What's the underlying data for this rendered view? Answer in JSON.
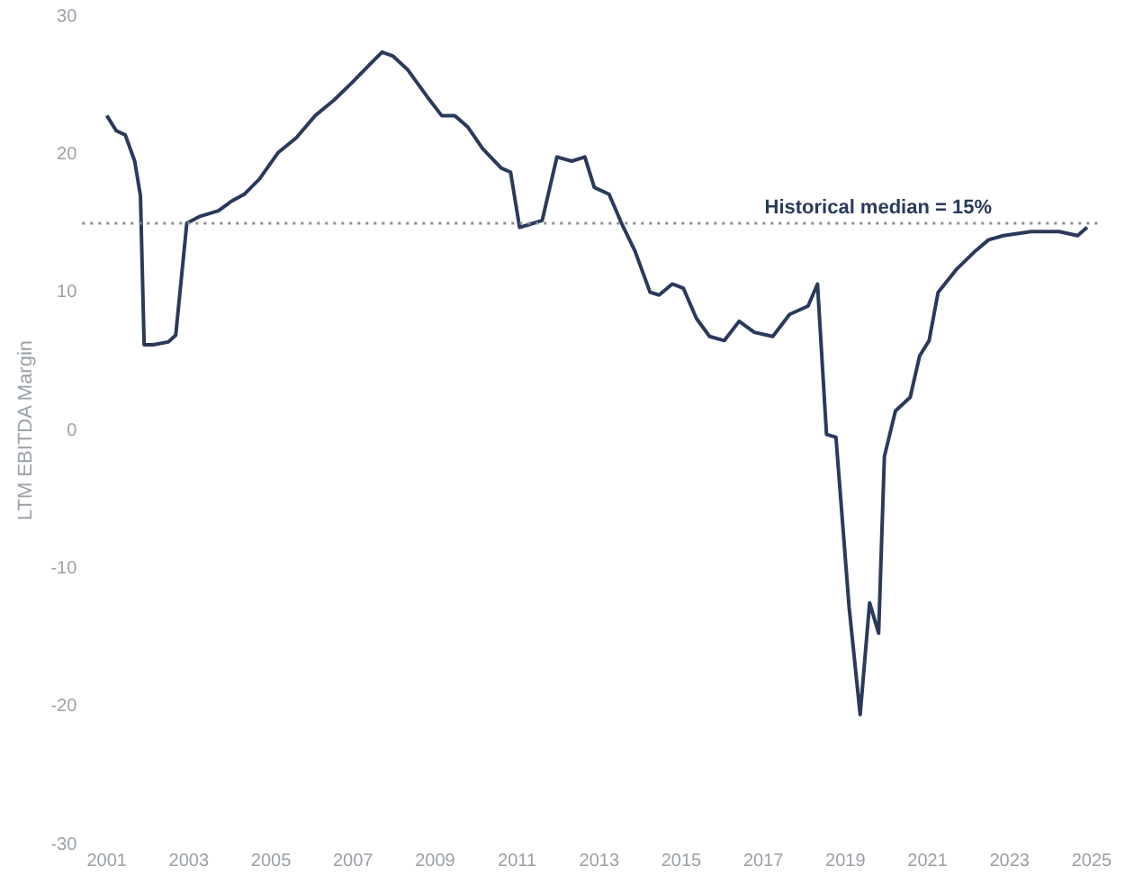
{
  "chart_data": {
    "type": "line",
    "ylabel": "LTM EBITDA Margin",
    "xlim": [
      2000.4,
      2025.2
    ],
    "xticks": [
      2001,
      2003,
      2005,
      2007,
      2009,
      2011,
      2013,
      2015,
      2017,
      2019,
      2021,
      2023,
      2025
    ],
    "ylim": [
      -30,
      30
    ],
    "yticks": [
      -30,
      -20,
      -10,
      0,
      10,
      20,
      30
    ],
    "grid": false,
    "legend": false,
    "marker": "none",
    "line_style": "solid",
    "ref_lines": [
      {
        "axis": "y",
        "value": 15,
        "label": "Historical median = 15%",
        "color": "#8a8f99",
        "line_style": "dotted"
      }
    ],
    "series": [
      {
        "color": "#2b3a5c",
        "x": [
          2001.0,
          2001.23,
          2001.45,
          2001.68,
          2001.82,
          2001.91,
          2002.13,
          2002.5,
          2002.68,
          2002.95,
          2003.27,
          2003.72,
          2004.04,
          2004.35,
          2004.72,
          2005.17,
          2005.62,
          2006.08,
          2006.53,
          2006.98,
          2007.44,
          2007.71,
          2007.98,
          2008.34,
          2008.8,
          2009.16,
          2009.48,
          2009.79,
          2010.16,
          2010.61,
          2010.84,
          2011.06,
          2011.29,
          2011.61,
          2011.97,
          2012.33,
          2012.65,
          2012.88,
          2013.24,
          2013.56,
          2013.87,
          2014.24,
          2014.46,
          2014.78,
          2015.05,
          2015.37,
          2015.69,
          2016.05,
          2016.41,
          2016.78,
          2017.23,
          2017.64,
          2018.09,
          2018.32,
          2018.54,
          2018.77,
          2019.09,
          2019.36,
          2019.59,
          2019.81,
          2019.95,
          2020.22,
          2020.58,
          2020.81,
          2021.04,
          2021.26,
          2021.72,
          2022.17,
          2022.49,
          2022.85,
          2023.53,
          2024.21,
          2024.66,
          2024.89
        ],
        "values": [
          22.8,
          21.7,
          21.4,
          19.5,
          17.0,
          6.2,
          6.2,
          6.4,
          6.9,
          15.0,
          15.5,
          15.9,
          16.6,
          17.1,
          18.2,
          20.1,
          21.2,
          22.8,
          23.9,
          25.2,
          26.6,
          27.4,
          27.1,
          26.1,
          24.2,
          22.8,
          22.8,
          22.0,
          20.4,
          19.0,
          18.7,
          14.7,
          14.9,
          15.2,
          19.8,
          19.5,
          19.8,
          17.6,
          17.1,
          14.9,
          13.0,
          10.0,
          9.8,
          10.6,
          10.3,
          8.1,
          6.8,
          6.5,
          7.9,
          7.1,
          6.8,
          8.4,
          9.0,
          10.6,
          -0.3,
          -0.5,
          -12.8,
          -20.6,
          -12.5,
          -14.7,
          -1.9,
          1.4,
          2.4,
          5.4,
          6.5,
          10.0,
          11.7,
          13.0,
          13.8,
          14.1,
          14.4,
          14.4,
          14.1,
          14.7
        ]
      }
    ]
  }
}
